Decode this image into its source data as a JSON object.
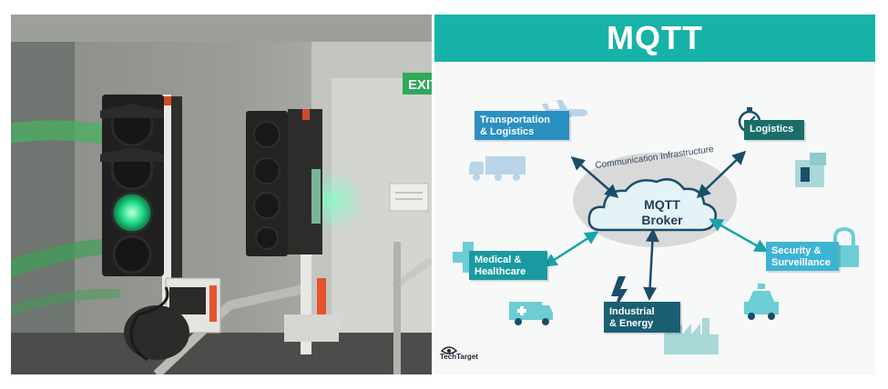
{
  "photo": {
    "exit_sign": "EXIT"
  },
  "diagram": {
    "title": "MQTT",
    "infrastructure_label": "Communication Infrastructure",
    "broker": {
      "line1": "MQTT",
      "line2": "Broker"
    },
    "nodes": {
      "transportation": {
        "line1": "Transportation",
        "line2": "& Logistics"
      },
      "logistics": {
        "line1": "Logistics"
      },
      "medical": {
        "line1": "Medical &",
        "line2": "Healthcare"
      },
      "industrial": {
        "line1": "Industrial",
        "line2": "& Energy"
      },
      "security": {
        "line1": "Security &",
        "line2": "Surveillance"
      }
    },
    "logo_text": "TechTarget"
  },
  "colors": {
    "banner": "#17b2a8",
    "node_blue": "#2a8fc1",
    "node_teal": "#1a9aa0",
    "node_dark": "#1b5f73",
    "node_light": "#3db4d4",
    "arrow": "#1aa3a8"
  }
}
